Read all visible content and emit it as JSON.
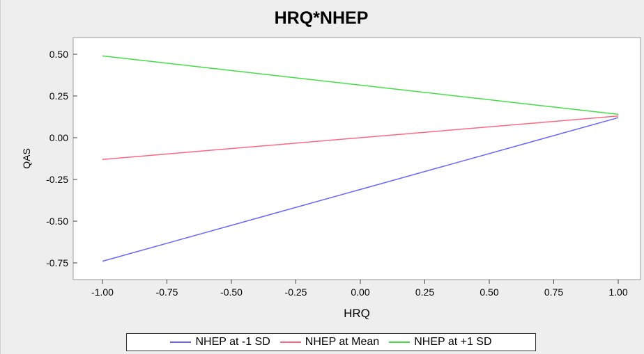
{
  "chart_data": {
    "type": "line",
    "title": "HRQ*NHEP",
    "xlabel": "HRQ",
    "ylabel": "QAS",
    "x": [
      -1.0,
      1.0
    ],
    "xlim": [
      -1.0,
      1.0
    ],
    "ylim": [
      -0.75,
      0.5
    ],
    "xticks": [
      "-1.00",
      "-0.75",
      "-0.50",
      "-0.25",
      "0.00",
      "0.25",
      "0.50",
      "0.75",
      "1.00"
    ],
    "yticks": [
      "0.50",
      "0.25",
      "0.00",
      "-0.25",
      "-0.50",
      "-0.75"
    ],
    "ytick_values": [
      0.5,
      0.25,
      0.0,
      -0.25,
      -0.5,
      -0.75
    ],
    "xtick_values": [
      -1.0,
      -0.75,
      -0.5,
      -0.25,
      0.0,
      0.25,
      0.5,
      0.75,
      1.0
    ],
    "grid": false,
    "legend_position": "bottom",
    "series": [
      {
        "name": "NHEP at -1 SD",
        "values": [
          -0.74,
          0.12
        ],
        "color": "#6666ff"
      },
      {
        "name": "NHEP at Mean",
        "values": [
          -0.13,
          0.13
        ],
        "color": "#ff6680"
      },
      {
        "name": "NHEP at +1 SD",
        "values": [
          0.49,
          0.14
        ],
        "color": "#44dd44"
      }
    ]
  }
}
